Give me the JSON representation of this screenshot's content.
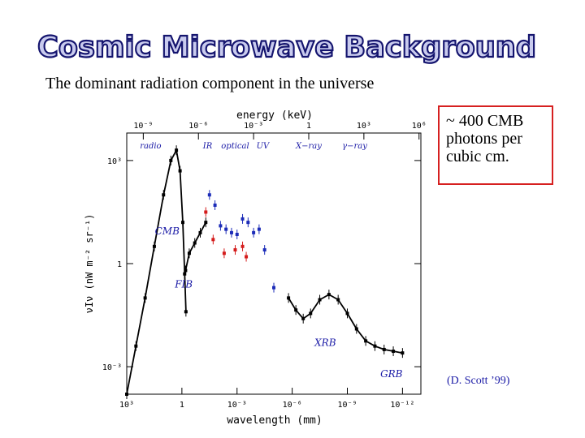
{
  "page": {
    "title": "Cosmic Microwave Background",
    "subtitle": "The dominant radiation component in the universe",
    "callout": [
      "~ 400 CMB",
      "photons per",
      "cubic cm."
    ],
    "credit": "(D. Scott ’99)"
  },
  "colors": {
    "title_fill": "#c9cbee",
    "title_stroke": "#14146e",
    "callout_border": "#d62020",
    "label_blue": "#1a1aa6",
    "data_red": "#d41c1c",
    "data_blue": "#1c2cb8"
  },
  "chart_data": {
    "type": "scatter",
    "title": "",
    "xlabel_top": "energy (keV)",
    "xlabel_bottom": "wavelength (mm)",
    "ylabel": "νIν (nW m⁻² sr⁻¹)",
    "xlim_log_mm": [
      3,
      -13
    ],
    "ylim_log": [
      -3.8,
      3.8
    ],
    "top_ticks": [
      {
        "label": "10⁻⁹",
        "log_mm": 2.1
      },
      {
        "label": "10⁻⁶",
        "log_mm": -0.9
      },
      {
        "label": "10⁻³",
        "log_mm": -3.9
      },
      {
        "label": "1",
        "log_mm": -6.9
      },
      {
        "label": "10³",
        "log_mm": -9.9
      },
      {
        "label": "10⁶",
        "log_mm": -12.9
      }
    ],
    "bottom_ticks": [
      {
        "label": "10³",
        "log_mm": 3
      },
      {
        "label": "1",
        "log_mm": 0
      },
      {
        "label": "10⁻³",
        "log_mm": -3
      },
      {
        "label": "10⁻⁶",
        "log_mm": -6
      },
      {
        "label": "10⁻⁹",
        "log_mm": -9
      },
      {
        "label": "10⁻¹²",
        "log_mm": -12
      }
    ],
    "y_ticks": [
      {
        "label": "10³",
        "log": 3
      },
      {
        "label": "1",
        "log": 0
      },
      {
        "label": "10⁻³",
        "log": -3
      }
    ],
    "band_labels": [
      {
        "text": "radio",
        "log_mm": 1.7,
        "log": 3.35
      },
      {
        "text": "IR",
        "log_mm": -1.4,
        "log": 3.35
      },
      {
        "text": "optical",
        "log_mm": -2.9,
        "log": 3.35
      },
      {
        "text": "UV",
        "log_mm": -4.4,
        "log": 3.35
      },
      {
        "text": "X−ray",
        "log_mm": -6.9,
        "log": 3.35
      },
      {
        "text": "γ−ray",
        "log_mm": -9.4,
        "log": 3.35
      }
    ],
    "component_labels": [
      {
        "text": "CMB",
        "log_mm": 0.8,
        "log": 0.85
      },
      {
        "text": "FIB",
        "log_mm": -0.1,
        "log": -0.7
      },
      {
        "text": "XRB",
        "log_mm": -7.8,
        "log": -2.4
      },
      {
        "text": "GRB",
        "log_mm": -11.4,
        "log": -3.3
      }
    ],
    "series": [
      {
        "name": "CMB",
        "x_log_mm": [
          3.0,
          2.5,
          2.0,
          1.5,
          1.0,
          0.6,
          0.3,
          0.1,
          -0.05,
          -0.15,
          -0.22
        ],
        "y_log": [
          -3.8,
          -2.4,
          -1.0,
          0.5,
          2.0,
          3.0,
          3.3,
          2.7,
          1.2,
          -0.3,
          -1.4
        ]
      },
      {
        "name": "FIB",
        "x_log_mm": [
          -0.2,
          -0.4,
          -0.7,
          -1.0,
          -1.3
        ],
        "y_log": [
          -0.2,
          0.3,
          0.6,
          0.9,
          1.2
        ]
      },
      {
        "name": "XRB",
        "x_log_mm": [
          -5.8,
          -6.2,
          -6.6,
          -7.0,
          -7.5,
          -8.0,
          -8.5,
          -9.0,
          -9.5,
          -10.0,
          -10.5,
          -11.0,
          -11.5,
          -12.0
        ],
        "y_log": [
          -1.0,
          -1.35,
          -1.6,
          -1.45,
          -1.05,
          -0.9,
          -1.05,
          -1.45,
          -1.9,
          -2.25,
          -2.4,
          -2.5,
          -2.55,
          -2.6
        ]
      },
      {
        "name": "optical/UV (blue)",
        "x_log_mm": [
          -1.5,
          -1.8,
          -2.1,
          -2.4,
          -2.7,
          -3.0,
          -3.3,
          -3.6,
          -3.9,
          -4.2,
          -4.5,
          -5.0
        ],
        "y_log": [
          2.0,
          1.7,
          1.1,
          1.0,
          0.9,
          0.85,
          1.3,
          1.2,
          0.9,
          1.0,
          0.4,
          -0.7
        ]
      },
      {
        "name": "optical/UV (red)",
        "x_log_mm": [
          -1.3,
          -1.7,
          -2.3,
          -2.9,
          -3.3,
          -3.5
        ],
        "y_log": [
          1.5,
          0.7,
          0.3,
          0.4,
          0.5,
          0.2
        ]
      }
    ]
  }
}
